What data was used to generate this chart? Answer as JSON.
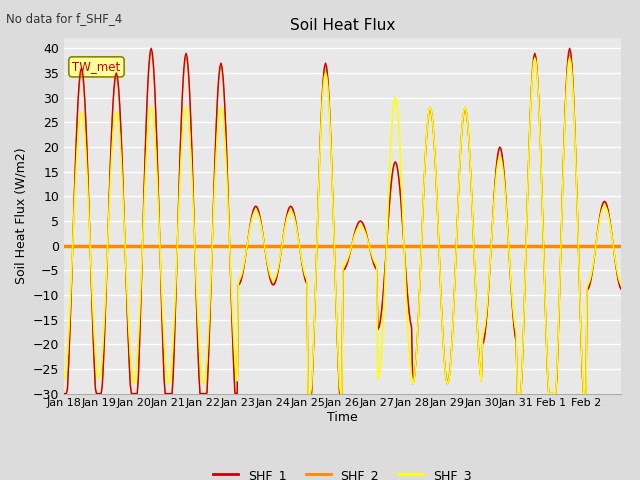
{
  "title": "Soil Heat Flux",
  "subtitle": "No data for f_SHF_4",
  "xlabel": "Time",
  "ylabel": "Soil Heat Flux (W/m2)",
  "ylim": [
    -30,
    42
  ],
  "yticks": [
    -30,
    -25,
    -20,
    -15,
    -10,
    -5,
    0,
    5,
    10,
    15,
    20,
    25,
    30,
    35,
    40
  ],
  "bg_color": "#dcdcdc",
  "plot_bg_color": "#e8e8e8",
  "grid_color": "#ffffff",
  "shf1_color": "#cc0000",
  "shf2_color": "#ff8800",
  "shf3_color": "#ffff00",
  "zero_line_color": "#ff8800",
  "legend_box_facecolor": "#ffff99",
  "legend_box_edge": "#888800",
  "tw_met_text_color": "#cc0000",
  "tw_met_bg": "#ffff99",
  "tw_met_edge": "#888800",
  "xtick_labels": [
    "Jan 18",
    "Jan 19",
    "Jan 20",
    "Jan 21",
    "Jan 22",
    "Jan 23",
    "Jan 24",
    "Jan 25",
    "Jan 26",
    "Jan 27",
    "Jan 28",
    "Jan 29",
    "Jan 30",
    "Jan 31",
    "Feb 1",
    "Feb 2"
  ],
  "n_days": 16,
  "pts_per_day": 30
}
